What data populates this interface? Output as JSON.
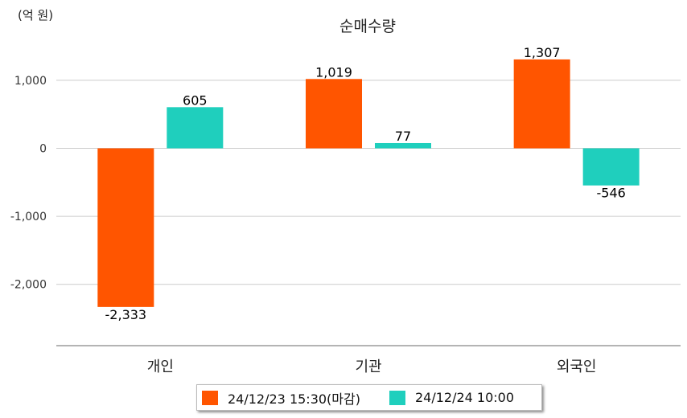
{
  "chart_data": {
    "type": "bar",
    "title": "순매수량",
    "unit_label": "(억 원)",
    "categories": [
      "개인",
      "기관",
      "외국인"
    ],
    "series": [
      {
        "name": "24/12/23 15:30(마감)",
        "color": "#ff5500",
        "values": [
          -2333,
          1019,
          1307
        ],
        "labels": [
          "-2,333",
          "1,019",
          "1,307"
        ]
      },
      {
        "name": "24/12/24 10:00",
        "color": "#1fcfbd",
        "values": [
          605,
          77,
          -546
        ],
        "labels": [
          "605",
          "77",
          "-546"
        ]
      }
    ],
    "y_ticks": [
      1000,
      0,
      -1000,
      -2000
    ],
    "y_tick_labels": [
      "1,000",
      "0",
      "-1,000",
      "-2,000"
    ],
    "ylim": [
      -2900,
      1550
    ],
    "grid": true,
    "legend_position": "bottom"
  }
}
